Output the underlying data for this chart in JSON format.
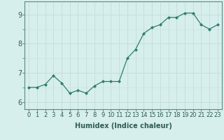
{
  "x": [
    0,
    1,
    2,
    3,
    4,
    5,
    6,
    7,
    8,
    9,
    10,
    11,
    12,
    13,
    14,
    15,
    16,
    17,
    18,
    19,
    20,
    21,
    22,
    23
  ],
  "y": [
    6.5,
    6.5,
    6.6,
    6.9,
    6.65,
    6.3,
    6.4,
    6.3,
    6.55,
    6.7,
    6.7,
    6.7,
    7.5,
    7.8,
    8.35,
    8.55,
    8.65,
    8.9,
    8.9,
    9.05,
    9.05,
    8.65,
    8.5,
    8.65
  ],
  "line_color": "#2e7d6e",
  "marker": "D",
  "marker_size": 2,
  "bg_color": "#d6eeec",
  "grid_color": "#c8dedd",
  "xlabel": "Humidex (Indice chaleur)",
  "xlabel_fontsize": 7,
  "ylabel_ticks": [
    6,
    7,
    8,
    9
  ],
  "xtick_labels": [
    "0",
    "1",
    "2",
    "3",
    "4",
    "5",
    "6",
    "7",
    "8",
    "9",
    "10",
    "11",
    "12",
    "13",
    "14",
    "15",
    "16",
    "17",
    "18",
    "19",
    "20",
    "21",
    "22",
    "23"
  ],
  "ylim": [
    5.75,
    9.45
  ],
  "xlim": [
    -0.5,
    23.5
  ],
  "tick_fontsize": 6,
  "spine_color": "#5a8a82"
}
